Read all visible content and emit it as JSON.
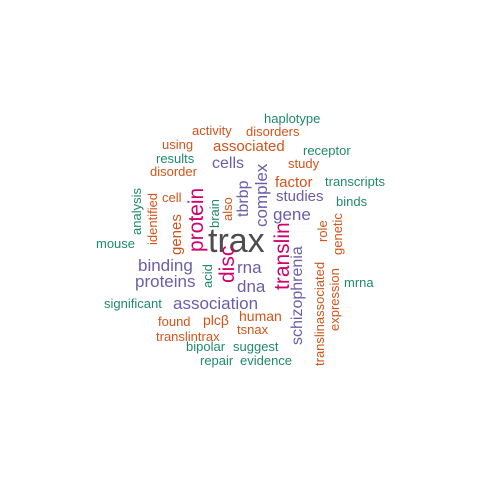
{
  "colors": {
    "dark": "#4d4d4d",
    "magenta": "#d1006e",
    "purple": "#6a5ea8",
    "orange": "#d2541a",
    "green": "#1f8a6a"
  },
  "words": [
    {
      "text": "trax",
      "color": "dark"
    },
    {
      "text": "protein",
      "color": "magenta"
    },
    {
      "text": "translin",
      "color": "magenta"
    },
    {
      "text": "disc",
      "color": "magenta"
    },
    {
      "text": "schizophrenia",
      "color": "purple"
    },
    {
      "text": "complex",
      "color": "purple"
    },
    {
      "text": "tbrbp",
      "color": "purple"
    },
    {
      "text": "association",
      "color": "purple"
    },
    {
      "text": "binding",
      "color": "purple"
    },
    {
      "text": "proteins",
      "color": "purple"
    },
    {
      "text": "rna",
      "color": "purple"
    },
    {
      "text": "dna",
      "color": "purple"
    },
    {
      "text": "gene",
      "color": "purple"
    },
    {
      "text": "studies",
      "color": "purple"
    },
    {
      "text": "cells",
      "color": "purple"
    },
    {
      "text": "associated",
      "color": "orange"
    },
    {
      "text": "factor",
      "color": "orange"
    },
    {
      "text": "genes",
      "color": "orange"
    },
    {
      "text": "human",
      "color": "orange"
    },
    {
      "text": "plcβ",
      "color": "orange"
    },
    {
      "text": "tsnax",
      "color": "orange"
    },
    {
      "text": "found",
      "color": "orange"
    },
    {
      "text": "translintrax",
      "color": "orange"
    },
    {
      "text": "translinassociated",
      "color": "orange"
    },
    {
      "text": "role",
      "color": "orange"
    },
    {
      "text": "expression",
      "color": "orange"
    },
    {
      "text": "genetic",
      "color": "orange"
    },
    {
      "text": "study",
      "color": "orange"
    },
    {
      "text": "disorder",
      "color": "orange"
    },
    {
      "text": "disorders",
      "color": "orange"
    },
    {
      "text": "activity",
      "color": "orange"
    },
    {
      "text": "using",
      "color": "orange"
    },
    {
      "text": "cell",
      "color": "orange"
    },
    {
      "text": "also",
      "color": "orange"
    },
    {
      "text": "identified",
      "color": "orange"
    },
    {
      "text": "haplotype",
      "color": "green"
    },
    {
      "text": "receptor",
      "color": "green"
    },
    {
      "text": "results",
      "color": "green"
    },
    {
      "text": "transcripts",
      "color": "green"
    },
    {
      "text": "binds",
      "color": "green"
    },
    {
      "text": "analysis",
      "color": "green"
    },
    {
      "text": "brain",
      "color": "green"
    },
    {
      "text": "mouse",
      "color": "green"
    },
    {
      "text": "acid",
      "color": "green"
    },
    {
      "text": "mrna",
      "color": "green"
    },
    {
      "text": "significant",
      "color": "green"
    },
    {
      "text": "bipolar",
      "color": "green"
    },
    {
      "text": "suggest",
      "color": "green"
    },
    {
      "text": "repair",
      "color": "green"
    },
    {
      "text": "evidence",
      "color": "green"
    }
  ]
}
